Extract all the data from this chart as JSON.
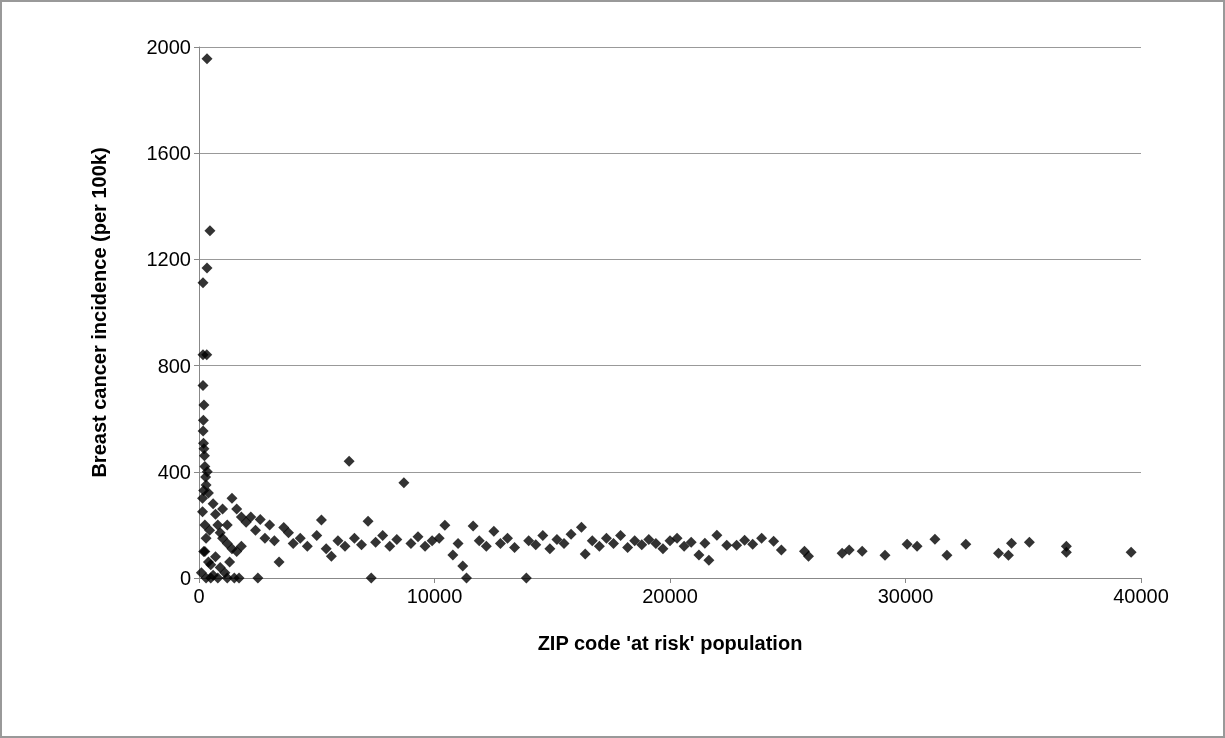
{
  "chart_data": {
    "type": "scatter",
    "xlabel": "ZIP code 'at risk' population",
    "ylabel": "Breast cancer incidence (per 100k)",
    "color": "#000000",
    "marker": "diamond",
    "grid": "y",
    "xlim": [
      0,
      40000
    ],
    "xticks": [
      0,
      10000,
      20000,
      30000,
      40000
    ],
    "ylim": [
      0,
      2000
    ],
    "yticks": [
      0,
      400,
      800,
      1200,
      1600,
      2000
    ],
    "x": [
      340,
      465,
      340,
      170,
      170,
      330,
      170,
      210,
      185,
      175,
      190,
      210,
      230,
      250,
      280,
      300,
      150,
      250,
      300,
      200,
      500,
      400,
      600,
      700,
      800,
      900,
      1000,
      1200,
      1400,
      1600,
      1800,
      500,
      700,
      900,
      1100,
      1300,
      1500,
      1700,
      1400,
      1600,
      1800,
      1000,
      1200,
      600,
      300,
      800,
      1200,
      100,
      150,
      200,
      250,
      350,
      400,
      450,
      2000,
      2200,
      2400,
      2600,
      2800,
      3000,
      3200,
      3400,
      3600,
      2500,
      3800,
      4000,
      4300,
      4600,
      5000,
      5200,
      5400,
      5620,
      5900,
      6200,
      6375,
      6600,
      6900,
      7180,
      7315,
      7500,
      7800,
      8100,
      8400,
      8700,
      9000,
      9300,
      9600,
      9900,
      10200,
      10440,
      10780,
      11000,
      11200,
      11360,
      11640,
      11900,
      12200,
      12520,
      12800,
      13100,
      13400,
      13900,
      14000,
      14300,
      14600,
      14900,
      15200,
      15500,
      15800,
      16240,
      16400,
      16700,
      17000,
      17300,
      17600,
      17900,
      18200,
      18500,
      18800,
      19100,
      19400,
      19700,
      20000,
      20300,
      20600,
      20900,
      21230,
      21480,
      21650,
      21990,
      22410,
      22830,
      23170,
      23510,
      23890,
      24400,
      24730,
      25710,
      25880,
      27310,
      27610,
      28160,
      29130,
      30070,
      30490,
      31250,
      31760,
      32560,
      33950,
      34370,
      34500,
      35260,
      36830,
      36830,
      39580
    ],
    "values": [
      1956,
      1308,
      1168,
      1112,
      841,
      841,
      725,
      652,
      594,
      554,
      508,
      487,
      460,
      420,
      380,
      350,
      300,
      200,
      150,
      100,
      0,
      60,
      280,
      240,
      200,
      170,
      150,
      130,
      110,
      100,
      120,
      50,
      80,
      40,
      20,
      60,
      0,
      0,
      300,
      260,
      230,
      260,
      200,
      10,
      0,
      0,
      0,
      20,
      250,
      330,
      100,
      400,
      320,
      180,
      210,
      230,
      180,
      220,
      150,
      200,
      140,
      60,
      190,
      0,
      170,
      130,
      150,
      120,
      160,
      218,
      110,
      82,
      140,
      120,
      440,
      150,
      125,
      214,
      0,
      135,
      160,
      120,
      145,
      359,
      130,
      155,
      120,
      140,
      150,
      199,
      87,
      130,
      45,
      0,
      196,
      140,
      120,
      176,
      130,
      150,
      115,
      0,
      140,
      125,
      160,
      110,
      145,
      130,
      165,
      191,
      90,
      140,
      120,
      150,
      130,
      160,
      115,
      140,
      125,
      145,
      130,
      110,
      140,
      150,
      120,
      135,
      87,
      131,
      67,
      161,
      123,
      123,
      142,
      127,
      150,
      138,
      105,
      101,
      82,
      93,
      105,
      101,
      86,
      127,
      120,
      146,
      86,
      127,
      93,
      86,
      131,
      135,
      120,
      97,
      97
    ]
  }
}
